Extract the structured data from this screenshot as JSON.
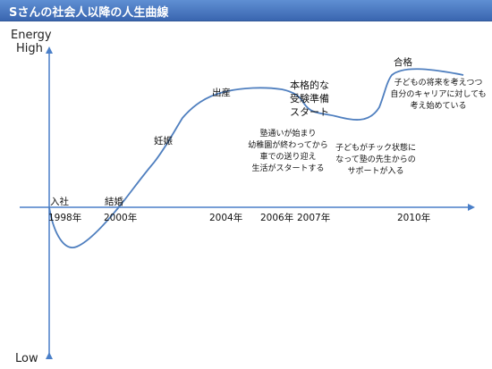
{
  "title": "Sさんの社会人以降の人生曲線",
  "y_axis": {
    "top_label_1": "Energy",
    "top_label_2": "High",
    "bottom_label": "Low"
  },
  "years": [
    "1998年",
    "2000年",
    "2004年",
    "2006年",
    "2007年",
    "2010年"
  ],
  "events": {
    "nyusha": "入社",
    "kekkon": "結婚",
    "ninshin": "妊娠",
    "shussan": "出産",
    "goukaku": "合格"
  },
  "annotations": {
    "juken_1": "本格的な",
    "juken_2": "受験準備",
    "juken_3": "スタート",
    "juku_1": "塾通いが始まり",
    "juku_2": "幼稚園が終わってから",
    "juku_3": "車での送り迎え",
    "juku_4": "生活がスタートする",
    "check_1": "子どもがチック状態に",
    "check_2": "なって塾の先生からの",
    "check_3": "サポートが入る",
    "future_1": "子どもの将来を考えつつ",
    "future_2": "自分のキャリアに対しても",
    "future_3": "考え始めている"
  },
  "colors": {
    "curve": "#4f7fbf",
    "axis": "#4a7fc8",
    "title_bar": "#3a66b0"
  }
}
